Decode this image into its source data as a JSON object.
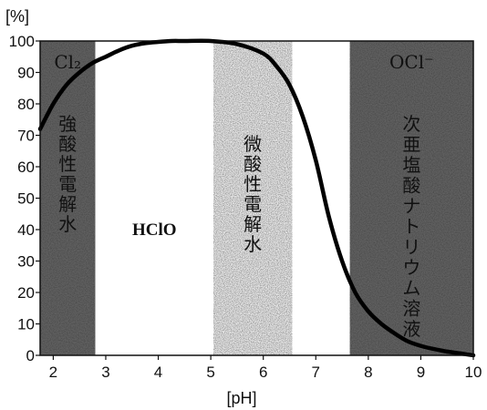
{
  "chart_data": {
    "type": "line",
    "title": "",
    "xlabel": "[pH]",
    "ylabel": "[%]",
    "xlim": [
      1.75,
      10
    ],
    "ylim": [
      0,
      100
    ],
    "x_ticks": [
      2,
      3,
      4,
      5,
      6,
      7,
      8,
      9,
      10
    ],
    "y_ticks": [
      0,
      10,
      20,
      30,
      40,
      50,
      60,
      70,
      80,
      90,
      100
    ],
    "series": [
      {
        "name": "HClO",
        "points": [
          [
            1.75,
            72
          ],
          [
            2.0,
            80
          ],
          [
            2.25,
            86
          ],
          [
            2.5,
            90
          ],
          [
            2.75,
            93
          ],
          [
            3.0,
            95
          ],
          [
            3.25,
            97
          ],
          [
            3.5,
            98.5
          ],
          [
            3.75,
            99.3
          ],
          [
            4.0,
            99.7
          ],
          [
            4.25,
            100
          ],
          [
            4.5,
            100
          ],
          [
            5.0,
            100
          ],
          [
            5.5,
            99
          ],
          [
            6.0,
            96
          ],
          [
            6.25,
            92
          ],
          [
            6.5,
            86
          ],
          [
            6.75,
            76
          ],
          [
            7.0,
            62
          ],
          [
            7.25,
            44
          ],
          [
            7.5,
            30
          ],
          [
            7.75,
            20
          ],
          [
            8.0,
            14
          ],
          [
            8.25,
            10
          ],
          [
            8.5,
            7
          ],
          [
            8.75,
            4.5
          ],
          [
            9.0,
            3
          ],
          [
            9.25,
            2
          ],
          [
            9.5,
            1.2
          ],
          [
            9.75,
            0.6
          ],
          [
            10.0,
            0
          ]
        ],
        "color": "#000000"
      }
    ],
    "regions": [
      {
        "x_from": 1.75,
        "x_to": 2.8,
        "fill": "dark",
        "labels": [
          "Cl₂"
        ],
        "vertical_label": "強酸性電解水"
      },
      {
        "x_from": 2.8,
        "x_to": 5.05,
        "fill": "white",
        "labels": [
          "HClO"
        ]
      },
      {
        "x_from": 5.05,
        "x_to": 6.55,
        "fill": "light",
        "vertical_label": "微酸性電解水"
      },
      {
        "x_from": 6.55,
        "x_to": 7.65,
        "fill": "white"
      },
      {
        "x_from": 7.65,
        "x_to": 10,
        "fill": "dark",
        "labels": [
          "OCl⁻"
        ],
        "vertical_label": "次亜塩酸ナトリウム溶液"
      }
    ]
  }
}
